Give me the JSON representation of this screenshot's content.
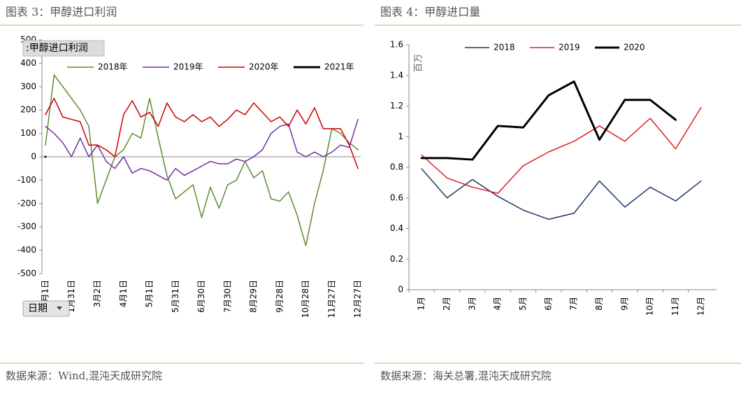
{
  "chart_data": [
    {
      "type": "line",
      "title": "图表 3：甲醇进口利润",
      "y_label": ":甲醇进口利润",
      "x_label": "日期",
      "source": "数据来源：Wind,混沌天成研究院",
      "categories": [
        "1月1日",
        null,
        null,
        "1月31日",
        null,
        null,
        "3月2日",
        null,
        null,
        "4月1日",
        null,
        null,
        "5月1日",
        null,
        null,
        "5月31日",
        null,
        null,
        "6月30日",
        null,
        null,
        "7月30日",
        null,
        null,
        "8月29日",
        null,
        null,
        "9月28日",
        null,
        null,
        "10月28日",
        null,
        null,
        "11月27日",
        null,
        null,
        "12月27日"
      ],
      "series": [
        {
          "name": "2018年",
          "color": "#5b8c32",
          "values": [
            50,
            350,
            300,
            250,
            200,
            130,
            -200,
            -100,
            0,
            30,
            100,
            80,
            250,
            80,
            -80,
            -180,
            -150,
            -120,
            -260,
            -130,
            -220,
            -120,
            -100,
            -20,
            -90,
            -60,
            -180,
            -190,
            -150,
            -250,
            -380,
            -200,
            -60,
            120,
            100,
            60,
            30
          ]
        },
        {
          "name": "2019年",
          "color": "#7030a0",
          "values": [
            130,
            100,
            60,
            0,
            80,
            0,
            50,
            -20,
            -50,
            0,
            -70,
            -50,
            -60,
            -80,
            -100,
            -50,
            -80,
            -60,
            -40,
            -20,
            -30,
            -30,
            -10,
            -20,
            0,
            30,
            100,
            130,
            140,
            20,
            0,
            20,
            0,
            20,
            50,
            40,
            160
          ]
        },
        {
          "name": "2020年",
          "color": "#cc0000",
          "values": [
            180,
            250,
            170,
            160,
            150,
            50,
            50,
            30,
            0,
            180,
            240,
            170,
            190,
            130,
            230,
            170,
            150,
            180,
            150,
            170,
            130,
            160,
            200,
            180,
            230,
            190,
            150,
            170,
            130,
            200,
            140,
            210,
            120,
            120,
            120,
            50,
            -50
          ]
        },
        {
          "name": "2021年",
          "color": "#000000",
          "values": [
            0,
            null,
            null,
            null,
            null,
            null,
            null,
            null,
            null,
            null,
            null,
            null,
            null,
            null,
            null,
            null,
            null,
            null,
            null,
            null,
            null,
            null,
            null,
            null,
            null,
            null,
            null,
            null,
            null,
            null,
            null,
            null,
            null,
            null,
            null,
            null,
            null
          ]
        }
      ],
      "ylim": [
        -500,
        500
      ],
      "yticks": [
        -500,
        -400,
        -300,
        -200,
        -100,
        0,
        100,
        200,
        300,
        400,
        500
      ],
      "legend_position": "top"
    },
    {
      "type": "line",
      "title": "图表 4：甲醇进口量",
      "y_label": "百万",
      "source": "数据来源：海关总署,混沌天成研究院",
      "categories": [
        "1月",
        "2月",
        "3月",
        "4月",
        "5月",
        "6月",
        "7月",
        "8月",
        "9月",
        "10月",
        "11月",
        "12月"
      ],
      "series": [
        {
          "name": "2018",
          "color": "#1f3864",
          "values": [
            0.79,
            0.6,
            0.72,
            0.61,
            0.52,
            0.46,
            0.5,
            0.71,
            0.54,
            0.67,
            0.58,
            0.71
          ]
        },
        {
          "name": "2019",
          "color": "#e02020",
          "values": [
            0.88,
            0.73,
            0.67,
            0.63,
            0.81,
            0.9,
            0.97,
            1.07,
            0.97,
            1.12,
            0.92,
            1.19
          ]
        },
        {
          "name": "2020",
          "color": "#000000",
          "values": [
            0.86,
            0.86,
            0.85,
            1.07,
            1.06,
            1.27,
            1.36,
            0.98,
            1.24,
            1.24,
            1.11,
            null
          ]
        }
      ],
      "ylim": [
        0,
        1.6
      ],
      "yticks": [
        0,
        0.2,
        0.4,
        0.6,
        0.8,
        1,
        1.2,
        1.4,
        1.6
      ],
      "legend_position": "top"
    }
  ]
}
